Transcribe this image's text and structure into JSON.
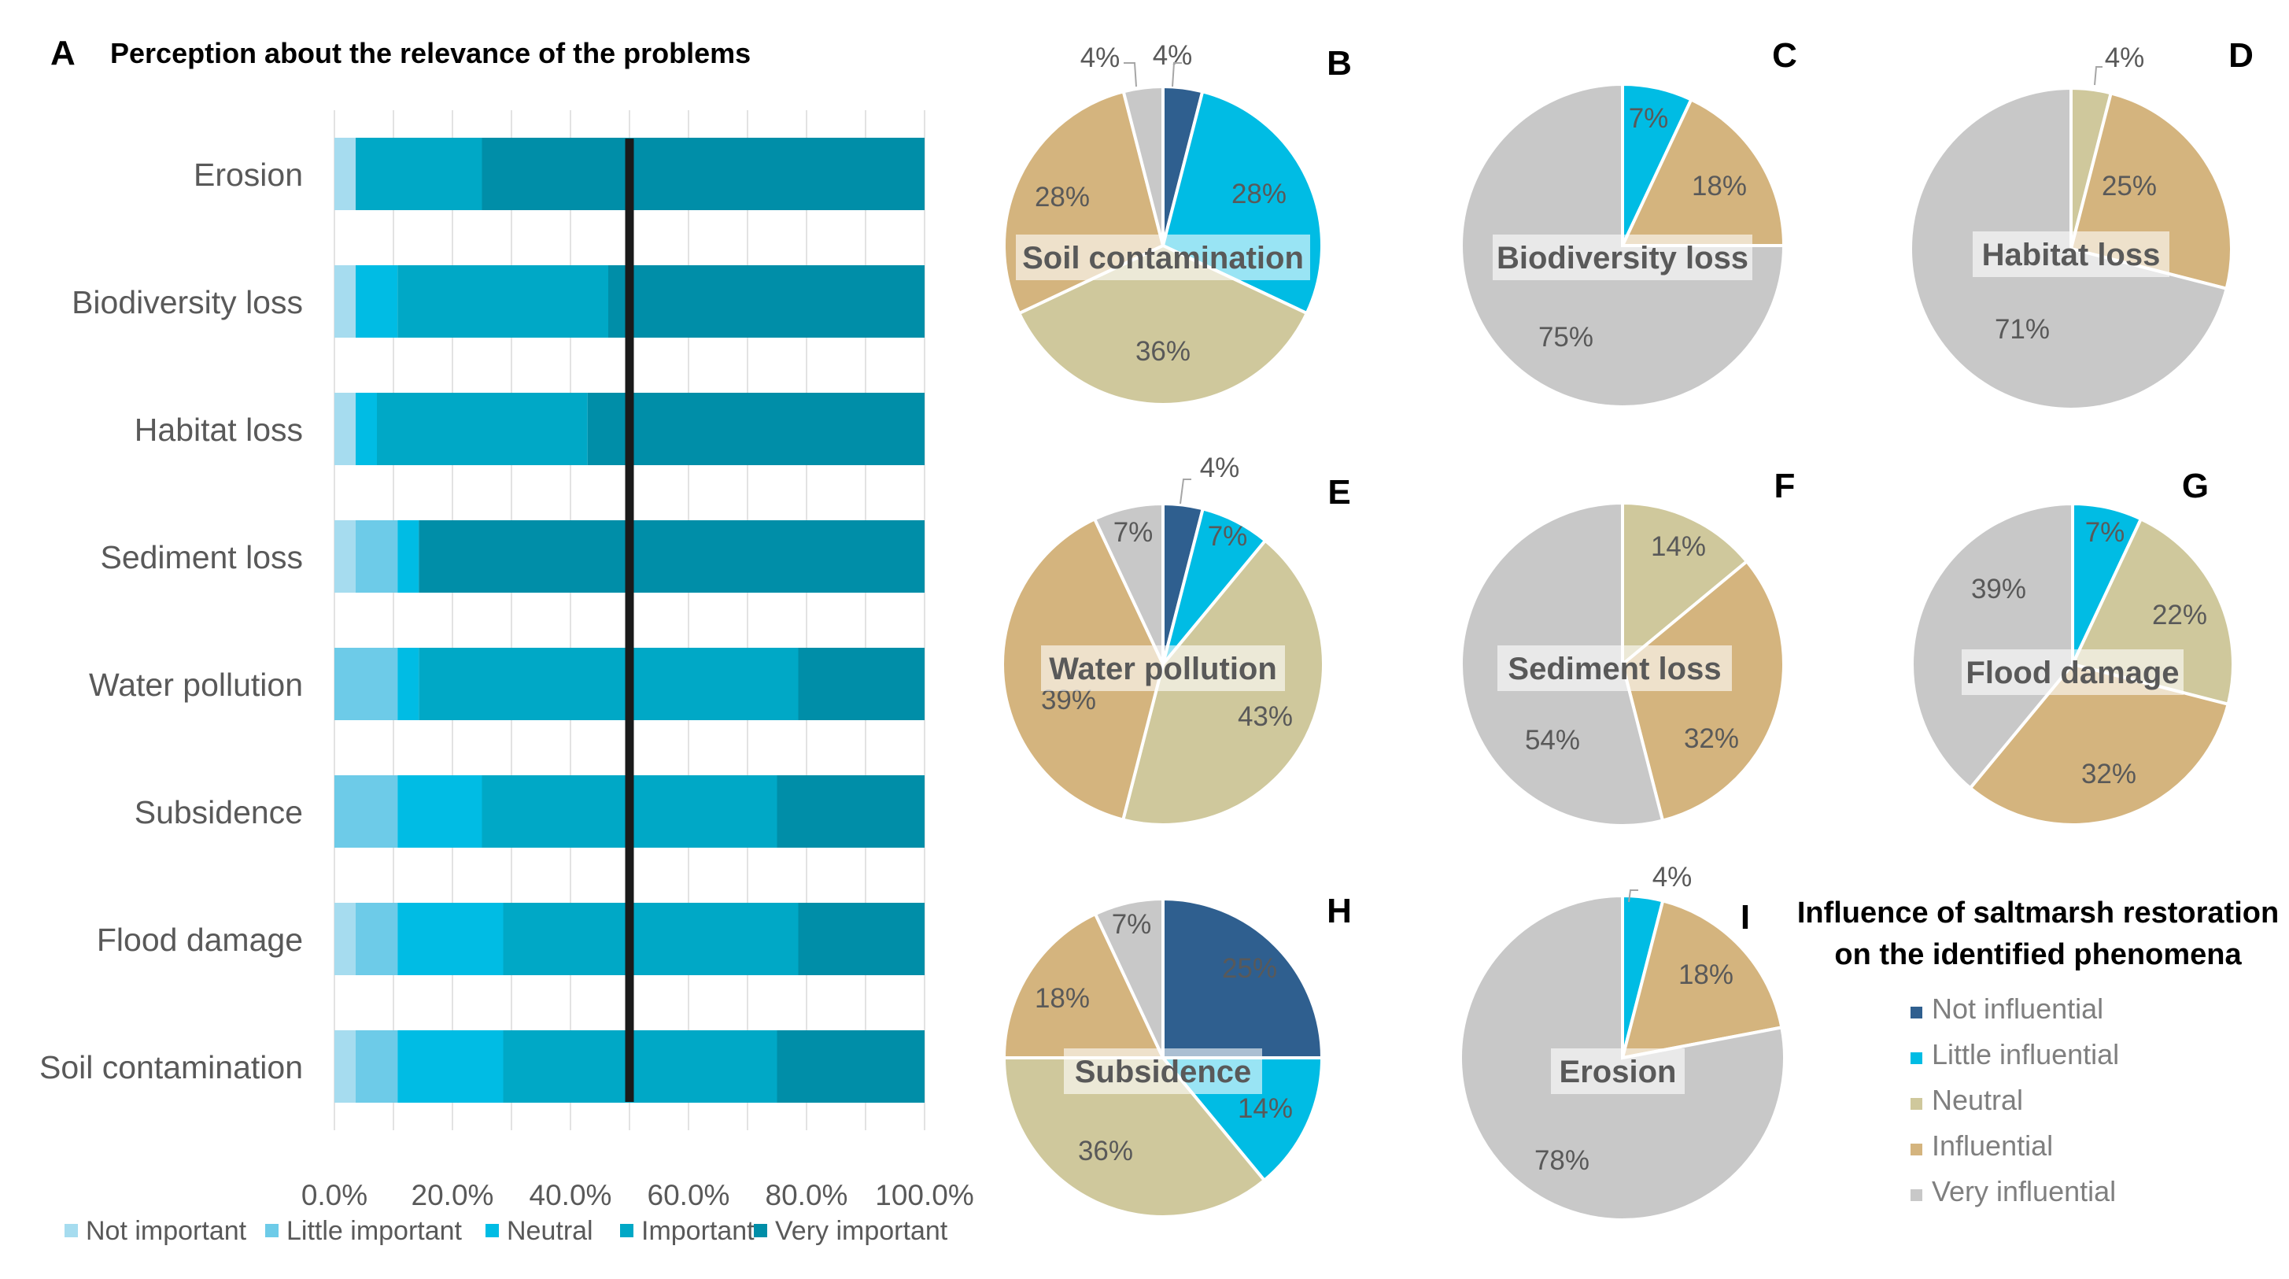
{
  "chart_data": [
    {
      "type": "bar",
      "stacked": true,
      "orientation": "horizontal",
      "panel_letter": "A",
      "title": "Perception about the relevance of the problems",
      "categories": [
        "Erosion",
        "Biodiversity loss",
        "Habitat loss",
        "Sediment loss",
        "Water pollution",
        "Subsidence",
        "Flood damage",
        "Soil contamination"
      ],
      "series": [
        {
          "name": "Not important",
          "values": [
            3.6,
            3.6,
            3.6,
            3.6,
            0,
            0,
            3.6,
            3.6
          ]
        },
        {
          "name": "Little important",
          "values": [
            0,
            0,
            0,
            7.1,
            10.7,
            10.7,
            7.1,
            7.1
          ]
        },
        {
          "name": "Neutral",
          "values": [
            0,
            7.1,
            3.6,
            3.6,
            3.6,
            14.3,
            17.9,
            17.9
          ]
        },
        {
          "name": "Important",
          "values": [
            21.4,
            35.7,
            35.7,
            0,
            64.3,
            50.0,
            50.0,
            46.4
          ]
        },
        {
          "name": "Very important",
          "values": [
            75.0,
            53.6,
            57.1,
            85.7,
            21.4,
            25.0,
            21.4,
            25.0
          ]
        }
      ],
      "xlim": [
        0,
        100
      ],
      "xticks": [
        "0.0%",
        "20.0%",
        "40.0%",
        "60.0%",
        "80.0%",
        "100.0%"
      ],
      "reference_line": 50,
      "grid": true,
      "legend": "bottom",
      "colors": [
        "#a6dcef",
        "#6dcbe8",
        "#00bce4",
        "#00a8c6",
        "#008ea8"
      ]
    },
    {
      "type": "pie",
      "panel_letter": "B",
      "title": "Soil contamination",
      "categories": [
        "Not influential",
        "Little influential",
        "Neutral",
        "Influential",
        "Very influential"
      ],
      "values": [
        4,
        28,
        36,
        28,
        4
      ],
      "labels": [
        "4%",
        "28%",
        "36%",
        "28%",
        "4%"
      ]
    },
    {
      "type": "pie",
      "panel_letter": "C",
      "title": "Biodiversity loss",
      "categories": [
        "Not influential",
        "Little influential",
        "Neutral",
        "Influential",
        "Very influential"
      ],
      "values": [
        0,
        7,
        0,
        18,
        75
      ],
      "labels": [
        "",
        "7%",
        "",
        "18%",
        "75%"
      ]
    },
    {
      "type": "pie",
      "panel_letter": "D",
      "title": "Habitat loss",
      "categories": [
        "Not influential",
        "Little influential",
        "Neutral",
        "Influential",
        "Very influential"
      ],
      "values": [
        0,
        0,
        4,
        25,
        71
      ],
      "labels": [
        "",
        "",
        "4%",
        "25%",
        "71%"
      ]
    },
    {
      "type": "pie",
      "panel_letter": "E",
      "title": "Water pollution",
      "categories": [
        "Not influential",
        "Little influential",
        "Neutral",
        "Influential",
        "Very influential"
      ],
      "values": [
        4,
        7,
        43,
        39,
        7
      ],
      "labels": [
        "4%",
        "7%",
        "43%",
        "39%",
        "7%"
      ]
    },
    {
      "type": "pie",
      "panel_letter": "F",
      "title": "Sediment loss",
      "categories": [
        "Not influential",
        "Little influential",
        "Neutral",
        "Influential",
        "Very influential"
      ],
      "values": [
        0,
        0,
        14,
        32,
        54
      ],
      "labels": [
        "",
        "",
        "14%",
        "32%",
        "54%"
      ]
    },
    {
      "type": "pie",
      "panel_letter": "G",
      "title": "Flood damage",
      "categories": [
        "Not influential",
        "Little influential",
        "Neutral",
        "Influential",
        "Very influential"
      ],
      "values": [
        0,
        7,
        22,
        32,
        39
      ],
      "labels": [
        "",
        "7%",
        "22%",
        "32%",
        "39%"
      ]
    },
    {
      "type": "pie",
      "panel_letter": "H",
      "title": "Subsidence",
      "categories": [
        "Not influential",
        "Little influential",
        "Neutral",
        "Influential",
        "Very influential"
      ],
      "values": [
        25,
        14,
        36,
        18,
        7
      ],
      "labels": [
        "25%",
        "14%",
        "36%",
        "18%",
        "7%"
      ]
    },
    {
      "type": "pie",
      "panel_letter": "I",
      "title": "Erosion",
      "categories": [
        "Not influential",
        "Little influential",
        "Neutral",
        "Influential",
        "Very influential"
      ],
      "values": [
        0,
        4,
        0,
        18,
        78
      ],
      "labels": [
        "",
        "4%",
        "",
        "18%",
        "78%"
      ]
    }
  ],
  "pie_legend": {
    "title_line1": "Influence of saltmarsh restoration",
    "title_line2": "on the identified phenomena",
    "items": [
      "Not influential",
      "Little influential",
      "Neutral",
      "Influential",
      "Very influential"
    ],
    "colors": [
      "#2f5f8f",
      "#00bce4",
      "#cfc89c",
      "#d4b47e",
      "#c8c8c8"
    ]
  }
}
